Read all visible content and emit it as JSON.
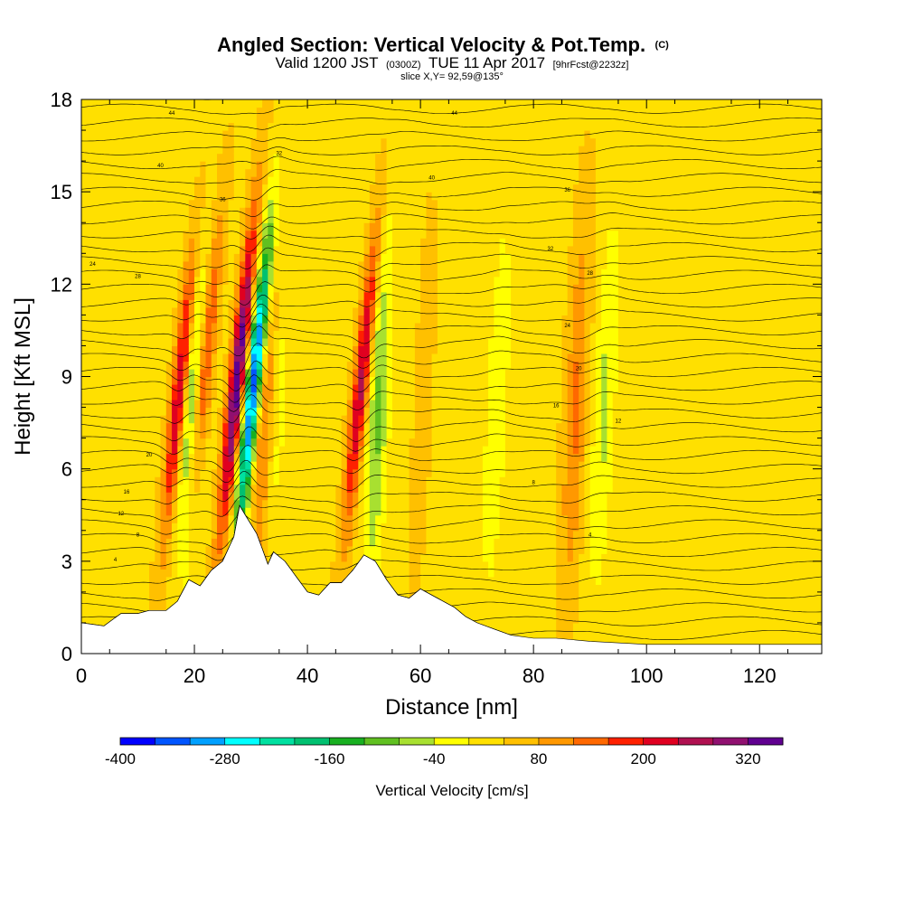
{
  "title": {
    "main": "Angled Section: Vertical Velocity & Pot.Temp.",
    "main_suffix": "(C)",
    "valid_prefix": "Valid 1200 JST",
    "valid_utc": "(0300Z)",
    "valid_date": "TUE 11 Apr 2017",
    "forecast": "[9hrFcst@2232z]",
    "slice": "slice X,Y= 92,59@135°"
  },
  "chart_data": {
    "type": "heatmap",
    "xlabel": "Distance [nm]",
    "ylabel": "Height [Kft MSL]",
    "xlim": [
      0,
      131
    ],
    "ylim": [
      0,
      18
    ],
    "x_ticks": [
      0,
      20,
      40,
      60,
      80,
      100,
      120
    ],
    "y_ticks": [
      0,
      3,
      6,
      9,
      12,
      15,
      18
    ],
    "x_tick_labels": [
      "0",
      "20",
      "40",
      "60",
      "80",
      "100",
      "120"
    ],
    "y_tick_labels": [
      "0",
      "3",
      "6",
      "9",
      "12",
      "15",
      "18"
    ],
    "grid": false,
    "colorbar": {
      "label": "Vertical Velocity [cm/s]",
      "min": -400,
      "max": 360,
      "step": 40,
      "tick_values": [
        -400,
        -280,
        -160,
        -40,
        80,
        200,
        320
      ],
      "tick_labels": [
        "-400",
        "-280",
        "-160",
        "-40",
        "80",
        "200",
        "320"
      ],
      "colors": [
        "#0000ff",
        "#0055ff",
        "#00a0ff",
        "#00ffff",
        "#00e0a0",
        "#00c070",
        "#18b020",
        "#60c020",
        "#a8e030",
        "#ffff00",
        "#ffe000",
        "#ffc000",
        "#ff9800",
        "#ff6800",
        "#ff2000",
        "#e00020",
        "#b01050",
        "#901070",
        "#600090"
      ]
    },
    "terrain_kft": [
      [
        0,
        1.0
      ],
      [
        4,
        0.9
      ],
      [
        7,
        1.3
      ],
      [
        10,
        1.3
      ],
      [
        12,
        1.4
      ],
      [
        15,
        1.4
      ],
      [
        17,
        1.7
      ],
      [
        19,
        2.4
      ],
      [
        21,
        2.2
      ],
      [
        23,
        2.7
      ],
      [
        25,
        3.0
      ],
      [
        26,
        3.4
      ],
      [
        27,
        3.8
      ],
      [
        28,
        4.8
      ],
      [
        29,
        4.5
      ],
      [
        31,
        3.9
      ],
      [
        32,
        3.4
      ],
      [
        33,
        2.9
      ],
      [
        34,
        3.3
      ],
      [
        36,
        3.0
      ],
      [
        38,
        2.5
      ],
      [
        40,
        2.0
      ],
      [
        42,
        1.9
      ],
      [
        44,
        2.3
      ],
      [
        46,
        2.3
      ],
      [
        48,
        2.7
      ],
      [
        50,
        3.2
      ],
      [
        52,
        3.0
      ],
      [
        54,
        2.4
      ],
      [
        56,
        1.9
      ],
      [
        58,
        1.8
      ],
      [
        60,
        2.1
      ],
      [
        62,
        1.9
      ],
      [
        64,
        1.7
      ],
      [
        66,
        1.5
      ],
      [
        68,
        1.2
      ],
      [
        70,
        1.0
      ],
      [
        73,
        0.8
      ],
      [
        76,
        0.6
      ],
      [
        80,
        0.5
      ],
      [
        84,
        0.5
      ],
      [
        90,
        0.4
      ],
      [
        100,
        0.3
      ],
      [
        110,
        0.3
      ],
      [
        115,
        0.3
      ],
      [
        121,
        0.3
      ],
      [
        131,
        0.3
      ]
    ],
    "updrafts_cm_s": [
      {
        "x": 16,
        "peak": 240
      },
      {
        "x": 20,
        "peak": 160
      },
      {
        "x": 26,
        "peak": 330
      },
      {
        "x": 32,
        "peak": 120
      },
      {
        "x": 48,
        "peak": 230
      },
      {
        "x": 59,
        "peak": 80
      },
      {
        "x": 87,
        "peak": 100
      }
    ],
    "downdrafts_cm_s": [
      {
        "x": 19,
        "peak": -140
      },
      {
        "x": 29,
        "peak": -400
      },
      {
        "x": 34,
        "peak": -60
      },
      {
        "x": 52,
        "peak": -120
      },
      {
        "x": 58,
        "peak": -60
      },
      {
        "x": 73,
        "peak": -70
      },
      {
        "x": 92,
        "peak": -80
      }
    ],
    "contour_labels": [
      "44",
      "40",
      "36",
      "32",
      "28",
      "24",
      "20",
      "16",
      "12",
      "8",
      "4"
    ]
  }
}
